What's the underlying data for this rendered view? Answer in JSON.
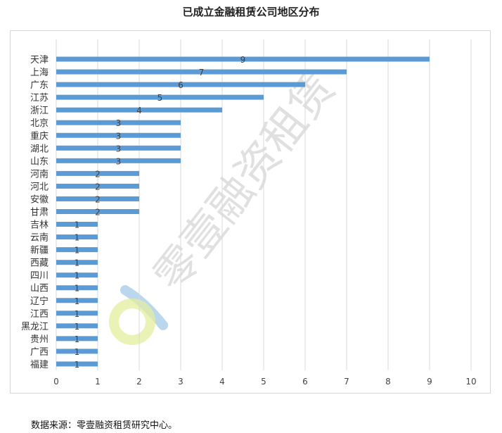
{
  "chart_data": {
    "type": "bar",
    "orientation": "horizontal",
    "title": "已成立金融租赁公司地区分布",
    "categories": [
      "天津",
      "上海",
      "广东",
      "江苏",
      "浙江",
      "北京",
      "重庆",
      "湖北",
      "山东",
      "河南",
      "河北",
      "安徽",
      "甘肃",
      "吉林",
      "云南",
      "新疆",
      "西藏",
      "四川",
      "山西",
      "辽宁",
      "江西",
      "黑龙江",
      "贵州",
      "广西",
      "福建"
    ],
    "values": [
      9,
      7,
      6,
      5,
      4,
      3,
      3,
      3,
      3,
      2,
      2,
      2,
      2,
      1,
      1,
      1,
      1,
      1,
      1,
      1,
      1,
      1,
      1,
      1,
      1
    ],
    "xlim": [
      0,
      10
    ],
    "xticks": [
      0,
      1,
      2,
      3,
      4,
      5,
      6,
      7,
      8,
      9,
      10
    ],
    "xlabel": "",
    "ylabel": "",
    "grid": true,
    "legend": "none",
    "bar_color": "#5b9bd5",
    "grid_color": "#d9d9d9"
  },
  "source_note": "数据来源：零壹融资租赁研究中心。",
  "watermark": {
    "text": "零壹融资租赁",
    "logo_colors": [
      "#a9cde8",
      "#e3ee9e"
    ]
  }
}
